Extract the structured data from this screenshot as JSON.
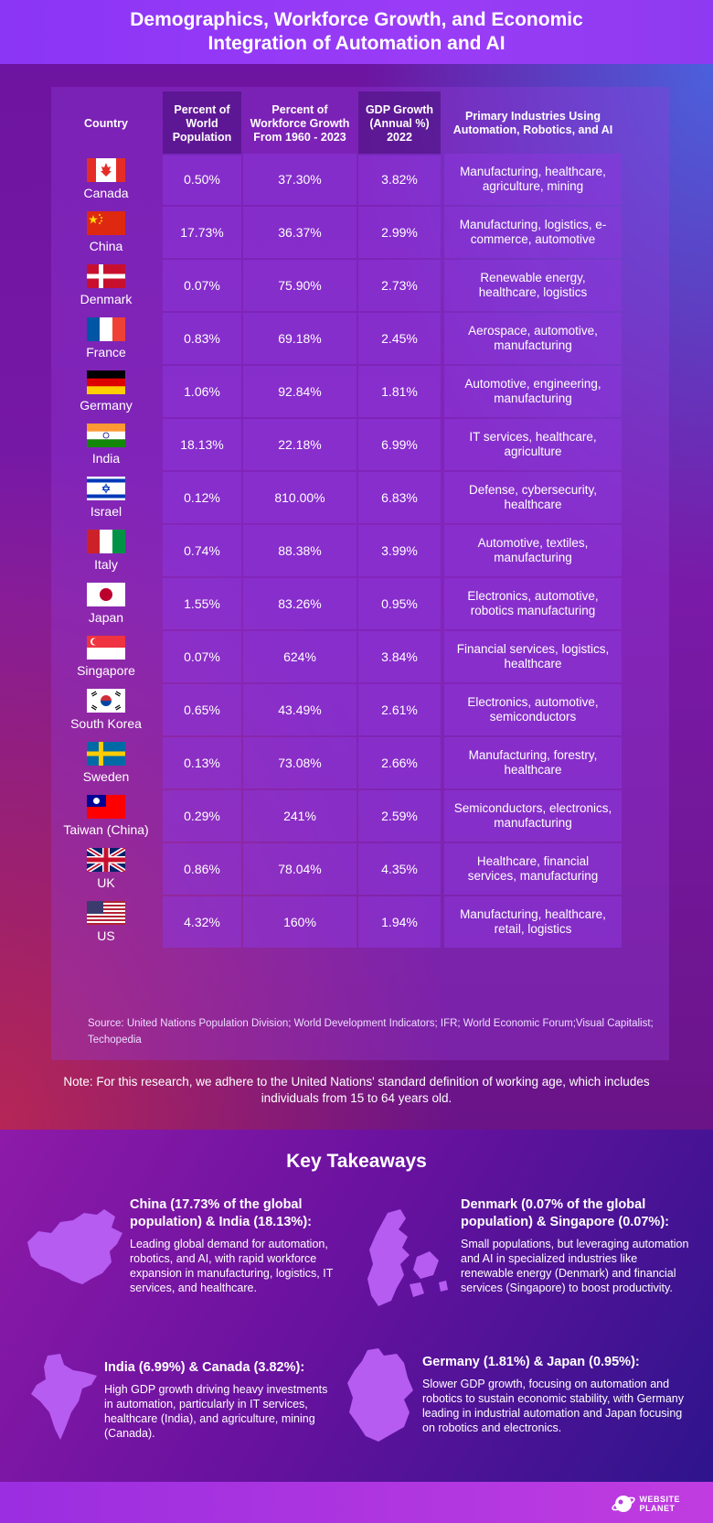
{
  "title_line1": "Demographics, Workforce Growth, and Economic",
  "title_line2": "Integration of Automation and AI",
  "columns": {
    "country": "Country",
    "population": "Percent of World Population",
    "workforce": "Percent of Workforce Growth From 1960 - 2023",
    "gdp": "GDP Growth (Annual %) 2022",
    "industries": "Primary Industries Using Automation, Robotics, and AI"
  },
  "rows": [
    {
      "flag": "canada-flag-icon",
      "country": "Canada",
      "population": "0.50%",
      "workforce": "37.30%",
      "gdp": "3.82%",
      "industries": "Manufacturing, healthcare, agriculture, mining"
    },
    {
      "flag": "china-flag-icon",
      "country": "China",
      "population": "17.73%",
      "workforce": "36.37%",
      "gdp": "2.99%",
      "industries": "Manufacturing, logistics, e-commerce, automotive"
    },
    {
      "flag": "denmark-flag-icon",
      "country": "Denmark",
      "population": "0.07%",
      "workforce": "75.90%",
      "gdp": "2.73%",
      "industries": "Renewable energy, healthcare, logistics"
    },
    {
      "flag": "france-flag-icon",
      "country": "France",
      "population": "0.83%",
      "workforce": "69.18%",
      "gdp": "2.45%",
      "industries": "Aerospace, automotive, manufacturing"
    },
    {
      "flag": "germany-flag-icon",
      "country": "Germany",
      "population": "1.06%",
      "workforce": "92.84%",
      "gdp": "1.81%",
      "industries": "Automotive, engineering, manufacturing"
    },
    {
      "flag": "india-flag-icon",
      "country": "India",
      "population": "18.13%",
      "workforce": "22.18%",
      "gdp": "6.99%",
      "industries": "IT services, healthcare, agriculture"
    },
    {
      "flag": "israel-flag-icon",
      "country": "Israel",
      "population": "0.12%",
      "workforce": "810.00%",
      "gdp": "6.83%",
      "industries": "Defense, cybersecurity, healthcare"
    },
    {
      "flag": "italy-flag-icon",
      "country": "Italy",
      "population": "0.74%",
      "workforce": "88.38%",
      "gdp": "3.99%",
      "industries": "Automotive, textiles, manufacturing"
    },
    {
      "flag": "japan-flag-icon",
      "country": "Japan",
      "population": "1.55%",
      "workforce": "83.26%",
      "gdp": "0.95%",
      "industries": "Electronics, automotive, robotics manufacturing"
    },
    {
      "flag": "singapore-flag-icon",
      "country": "Singapore",
      "population": "0.07%",
      "workforce": "624%",
      "gdp": "3.84%",
      "industries": "Financial services, logistics, healthcare"
    },
    {
      "flag": "south-korea-flag-icon",
      "country": "South Korea",
      "population": "0.65%",
      "workforce": "43.49%",
      "gdp": "2.61%",
      "industries": "Electronics, automotive, semiconductors"
    },
    {
      "flag": "sweden-flag-icon",
      "country": "Sweden",
      "population": "0.13%",
      "workforce": "73.08%",
      "gdp": "2.66%",
      "industries": "Manufacturing, forestry, healthcare"
    },
    {
      "flag": "taiwan-flag-icon",
      "country": "Taiwan (China)",
      "population": "0.29%",
      "workforce": "241%",
      "gdp": "2.59%",
      "industries": "Semiconductors, electronics, manufacturing"
    },
    {
      "flag": "uk-flag-icon",
      "country": "UK",
      "population": "0.86%",
      "workforce": "78.04%",
      "gdp": "4.35%",
      "industries": "Healthcare, financial services, manufacturing"
    },
    {
      "flag": "us-flag-icon",
      "country": "US",
      "population": "4.32%",
      "workforce": "160%",
      "gdp": "1.94%",
      "industries": "Manufacturing, healthcare, retail, logistics"
    }
  ],
  "source": "Source: United Nations Population Division; World Development Indicators; IFR; World Economic Forum;Visual Capitalist; Techopedia",
  "note": "Note: For this research, we adhere to the United Nations' standard definition of working age, which includes individuals from 15 to 64 years old.",
  "key_takeaways_title": "Key Takeaways",
  "takeaways": [
    {
      "map": "china-map-icon",
      "heading": "China (17.73% of the global population) & India (18.13%):",
      "body": "Leading global demand for automation, robotics, and AI, with rapid workforce expansion in manufacturing, logistics, IT services, and healthcare."
    },
    {
      "map": "denmark-map-icon",
      "heading": "Denmark (0.07% of the global population) & Singapore (0.07%):",
      "body": "Small populations, but leveraging automation and AI in specialized industries like renewable energy (Denmark) and financial services (Singapore) to boost productivity."
    },
    {
      "map": "india-map-icon",
      "heading": "India (6.99%) & Canada (3.82%):",
      "body": "High GDP growth driving heavy investments in automation, particularly in IT services, healthcare (India), and agriculture, mining (Canada)."
    },
    {
      "map": "germany-map-icon",
      "heading": "Germany (1.81%) & Japan (0.95%):",
      "body": "Slower GDP growth, focusing on automation and robotics to sustain economic stability, with Germany leading in industrial automation and Japan focusing on robotics and electronics."
    }
  ],
  "logo": {
    "line1": "WEBSITE",
    "line2": "PLANET"
  },
  "colors": {
    "cell": "#8c37dc",
    "header_dark": "#460f78",
    "footer": "#b43ce0",
    "map": "#b65cf0"
  }
}
